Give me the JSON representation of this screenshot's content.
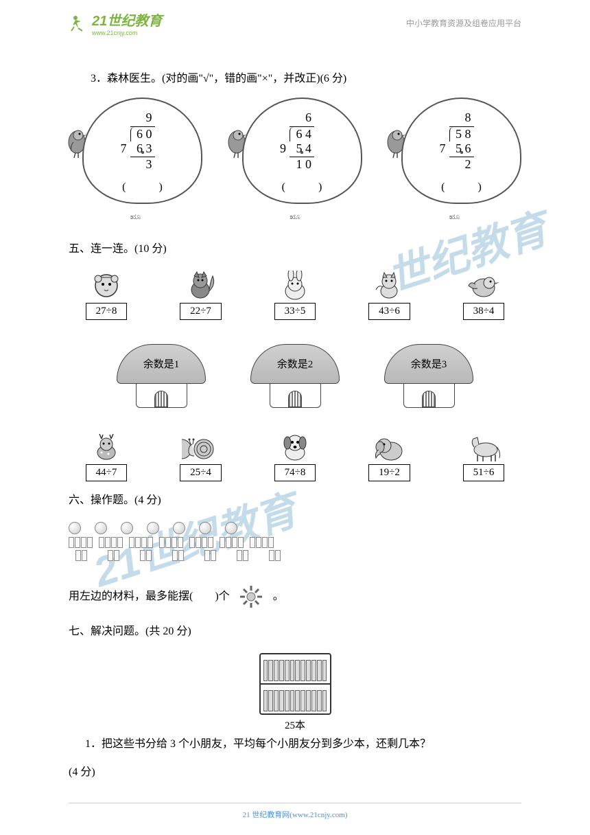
{
  "header": {
    "logo_text": "21世纪教育",
    "logo_sub": "www.21cnjy.com",
    "right_text": "中小学教育资源及组卷应用平台"
  },
  "q3": {
    "title": "3．森林医生。(对的画\"√\"，错的画\"×\"，并改正)(6 分)",
    "problems": [
      {
        "divisor": "7",
        "dividend": "6 0",
        "quotient": "9",
        "sub": "6 3",
        "remainder": "3"
      },
      {
        "divisor": "9",
        "dividend": "6 4",
        "quotient": "6",
        "sub": "5 4",
        "remainder": "1 0"
      },
      {
        "divisor": "7",
        "dividend": "5 8",
        "quotient": "8",
        "sub": "5 6",
        "remainder": "2"
      }
    ],
    "paren": "(　　　)"
  },
  "q5": {
    "title": "五、连一连。(10 分)",
    "top_animals": [
      "27÷8",
      "22÷7",
      "33÷5",
      "43÷6",
      "38÷4"
    ],
    "mushrooms": [
      "余数是1",
      "余数是2",
      "余数是3"
    ],
    "bottom_animals": [
      "44÷7",
      "25÷4",
      "74÷8",
      "19÷2",
      "51÷6"
    ]
  },
  "q6": {
    "title": "六、操作题。(4 分)",
    "circles_count": 7,
    "rect_groups_count": 7,
    "rects_per_group": 4,
    "rect_rows": 2,
    "rects_per_group_row2": 2,
    "prompt_pre": "用左边的材料，最多能摆(",
    "prompt_blank": "　　",
    "prompt_post": ")个",
    "prompt_end": "。"
  },
  "q7": {
    "title": "七、解决问题。(共 20 分)",
    "books_label": "25本",
    "sub1": "1．把这些书分给 3 个小朋友，平均每个小朋友分到多少本，还剩几本？",
    "sub1_points": "(4 分)"
  },
  "footer": {
    "text": "21 世纪教育网(www.21cnjy.com)"
  },
  "watermark": {
    "text1": "世纪教育",
    "text2": "21世纪教育"
  }
}
